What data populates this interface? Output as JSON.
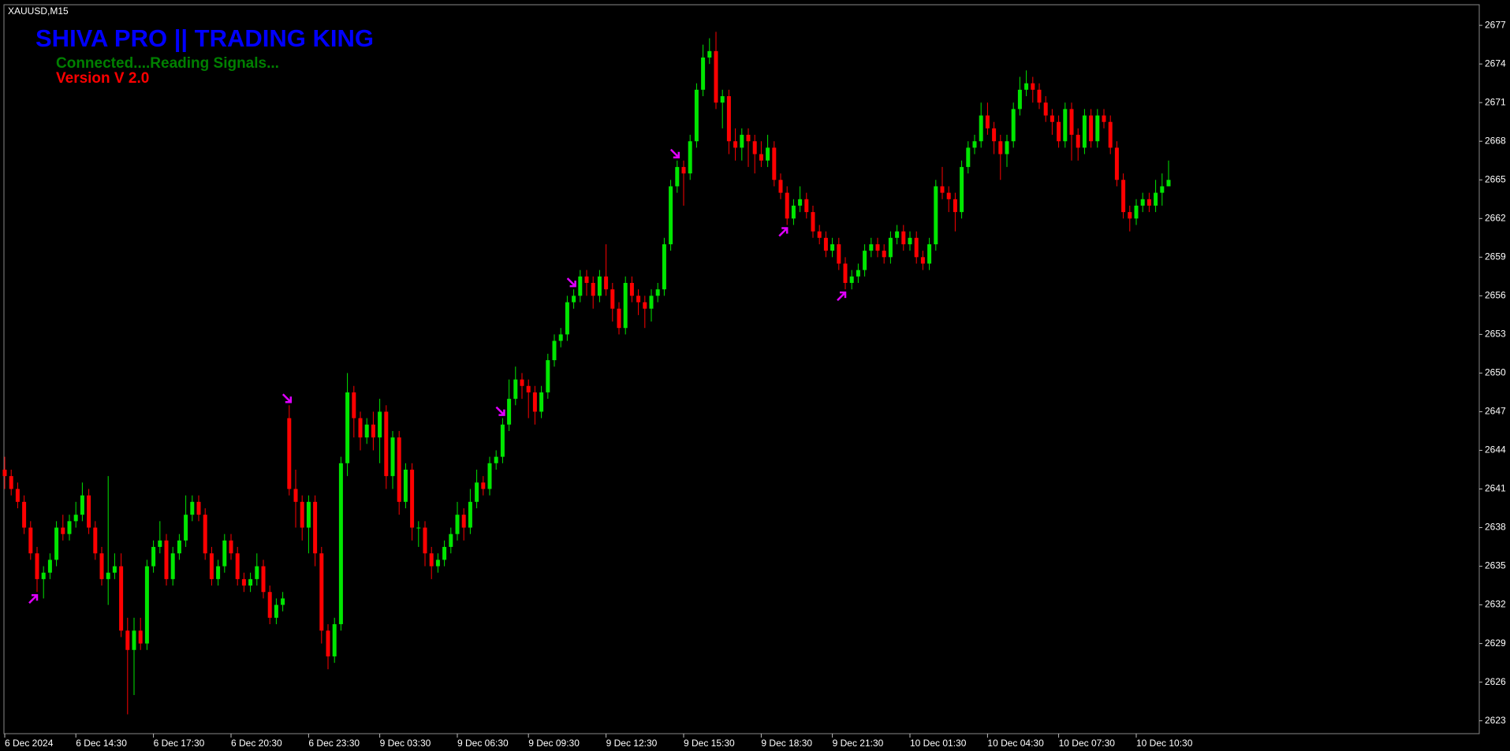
{
  "chart_data": {
    "type": "candlestick",
    "symbol": "XAUUSD,M15",
    "title": "SHIVA PRO || TRADING KING",
    "annotations": [
      "Connected....Reading Signals...",
      "Version V 2.0"
    ],
    "up_color": "#00e600",
    "down_color": "#ff0000",
    "signal_color": "#e000ff",
    "title_color": "#0000ff",
    "annotation_colors": [
      "#008000",
      "#ff0000"
    ],
    "ylim": [
      2622,
      2678.6
    ],
    "yticks": [
      2623,
      2626,
      2629,
      2632,
      2635,
      2638,
      2641,
      2644,
      2647,
      2650,
      2653,
      2656,
      2659,
      2662,
      2665,
      2668,
      2671,
      2674,
      2677
    ],
    "xlim": [
      0,
      180
    ],
    "xticks": [
      {
        "value": 0,
        "label": "6 Dec 2024"
      },
      {
        "value": 11,
        "label": "6 Dec 14:30"
      },
      {
        "value": 23,
        "label": "6 Dec 17:30"
      },
      {
        "value": 35,
        "label": "6 Dec 20:30"
      },
      {
        "value": 47,
        "label": "6 Dec 23:30"
      },
      {
        "value": 58,
        "label": "9 Dec 03:30"
      },
      {
        "value": 70,
        "label": "9 Dec 06:30"
      },
      {
        "value": 81,
        "label": "9 Dec 09:30"
      },
      {
        "value": 93,
        "label": "9 Dec 12:30"
      },
      {
        "value": 105,
        "label": "9 Dec 15:30"
      },
      {
        "value": 117,
        "label": "9 Dec 18:30"
      },
      {
        "value": 128,
        "label": "9 Dec 21:30"
      },
      {
        "value": 140,
        "label": "10 Dec 01:30"
      },
      {
        "value": 152,
        "label": "10 Dec 04:30"
      },
      {
        "value": 163,
        "label": "10 Dec 07:30"
      },
      {
        "value": 175,
        "label": "10 Dec 10:30"
      }
    ],
    "open": [
      2642.5,
      2642,
      2641,
      2640,
      2638,
      2636,
      2634,
      2634.5,
      2635.5,
      2638,
      2637.5,
      2638.5,
      2639,
      2640.5,
      2638,
      2636,
      2634,
      2634.5,
      2635,
      2630,
      2628.5,
      2630,
      2629,
      2635,
      2636.5,
      2637,
      2634,
      2636,
      2637,
      2639,
      2640,
      2639,
      2636,
      2634,
      2635,
      2637,
      2636,
      2634,
      2633.5,
      2634,
      2635,
      2633,
      2631,
      2632,
      2646.5,
      2641,
      2640,
      2638,
      2640,
      2636,
      2630,
      2628,
      2630.5,
      2643,
      2648.5,
      2646.5,
      2645,
      2646,
      2645,
      2647,
      2642,
      2645,
      2640,
      2642.5,
      2638,
      2638,
      2636,
      2635,
      2635.5,
      2636.5,
      2637.5,
      2639,
      2638,
      2640,
      2641.5,
      2641,
      2643,
      2643.5,
      2646,
      2648,
      2649.5,
      2649,
      2648.5,
      2647,
      2648.5,
      2651,
      2652.5,
      2653,
      2655.5,
      2656,
      2657.5,
      2657,
      2656,
      2657.5,
      2656.5,
      2655,
      2653.5,
      2657,
      2656,
      2655.5,
      2655,
      2656,
      2656.5,
      2660,
      2664.5,
      2666,
      2665.5,
      2668,
      2672,
      2674.5,
      2675,
      2671,
      2671.5,
      2668,
      2667.5,
      2668.5,
      2668,
      2667,
      2666.5,
      2667.5,
      2665,
      2664,
      2662,
      2663,
      2663.5,
      2662.5,
      2661,
      2660.5,
      2659.5,
      2660,
      2658.5,
      2657,
      2657.5,
      2658,
      2659.5,
      2660,
      2659.5,
      2659,
      2660.5,
      2661,
      2660,
      2660.5,
      2659,
      2658.5,
      2660,
      2664.5,
      2664,
      2663.5,
      2662.5,
      2666,
      2667.5,
      2668,
      2670,
      2669,
      2668,
      2667,
      2668,
      2670.5,
      2672,
      2672.5,
      2672,
      2671,
      2670,
      2669.5,
      2668,
      2670.5,
      2668.5,
      2667.5,
      2670,
      2668,
      2670,
      2669.5,
      2667.5,
      2665,
      2662.5,
      2662,
      2663,
      2663.5,
      2663,
      2664,
      2664.5
    ],
    "high": [
      2643.5,
      2642.5,
      2641.5,
      2640.5,
      2638.5,
      2636.5,
      2635,
      2636,
      2638.5,
      2639,
      2639,
      2640,
      2641.5,
      2641,
      2638.5,
      2636.5,
      2642,
      2636,
      2636,
      2631,
      2631,
      2631,
      2635.5,
      2637,
      2638.5,
      2637.5,
      2636.5,
      2637.5,
      2640.5,
      2640.5,
      2640.5,
      2639.5,
      2636.5,
      2635.5,
      2637.5,
      2637.5,
      2636.5,
      2634.5,
      2634.5,
      2636,
      2635.5,
      2633.5,
      2632.5,
      2633,
      2647.5,
      2642.5,
      2640.5,
      2640.5,
      2640.5,
      2636.5,
      2630.5,
      2631,
      2643.5,
      2650,
      2649,
      2647,
      2646.5,
      2647,
      2648,
      2647.5,
      2645.5,
      2645.5,
      2643,
      2643,
      2638.5,
      2638.5,
      2636.5,
      2636,
      2637,
      2638,
      2640,
      2639.5,
      2641,
      2642.5,
      2642,
      2643.5,
      2644,
      2646.5,
      2649.5,
      2650.5,
      2650,
      2649.5,
      2649,
      2649,
      2651.5,
      2653,
      2653.5,
      2656,
      2656.5,
      2658,
      2658,
      2657.5,
      2658,
      2660,
      2657,
      2655.5,
      2657.5,
      2657.5,
      2656.5,
      2656,
      2656.5,
      2657,
      2660.5,
      2665,
      2666.5,
      2666.5,
      2668.5,
      2672.5,
      2675.5,
      2676,
      2676.5,
      2672,
      2672,
      2669,
      2669,
      2669,
      2668.5,
      2668,
      2668.5,
      2668,
      2665.5,
      2664.5,
      2663.5,
      2664.5,
      2664,
      2663,
      2661.5,
      2661,
      2660.5,
      2660.5,
      2659,
      2658,
      2658.5,
      2660,
      2660.5,
      2660.5,
      2660,
      2661,
      2661.5,
      2661.5,
      2661,
      2661,
      2659.5,
      2660.5,
      2665,
      2666,
      2664.5,
      2664,
      2666.5,
      2668,
      2668.5,
      2671,
      2671,
      2669.5,
      2668.5,
      2668.5,
      2671,
      2673,
      2673.5,
      2673,
      2672.5,
      2671.5,
      2670.5,
      2670,
      2671,
      2671,
      2669,
      2670.5,
      2670.5,
      2670.5,
      2670.5,
      2670,
      2668,
      2665.5,
      2663,
      2663.5,
      2664,
      2664,
      2665,
      2665.5,
      2666.5
    ],
    "low": [
      2641,
      2640.5,
      2639.5,
      2637.5,
      2635.5,
      2633,
      2632.5,
      2634,
      2635,
      2637,
      2637,
      2638,
      2638.5,
      2637.5,
      2635.5,
      2633.5,
      2632,
      2634,
      2629.5,
      2623.5,
      2625,
      2628.5,
      2628.5,
      2634.5,
      2636,
      2633.5,
      2633.5,
      2635.5,
      2636.5,
      2638.5,
      2638.5,
      2635.5,
      2633.5,
      2633.5,
      2634.5,
      2635.5,
      2633.5,
      2633,
      2633,
      2633.5,
      2632.5,
      2630.5,
      2630.5,
      2631.5,
      2640.5,
      2638,
      2637,
      2636,
      2635,
      2629,
      2627,
      2627.5,
      2630,
      2642,
      2645,
      2644,
      2644.5,
      2644,
      2643,
      2641,
      2641,
      2639,
      2639.5,
      2637,
      2636.5,
      2635,
      2634,
      2634.5,
      2635,
      2636,
      2637,
      2637,
      2637.5,
      2639.5,
      2640.5,
      2640.5,
      2642.5,
      2643,
      2645.5,
      2647.5,
      2648,
      2646.5,
      2646,
      2646.5,
      2648,
      2650.5,
      2652,
      2652.5,
      2655,
      2655.5,
      2656,
      2655,
      2655.5,
      2656,
      2654,
      2653,
      2653,
      2655.5,
      2654.5,
      2653.5,
      2654,
      2655.5,
      2656,
      2659.5,
      2664,
      2663,
      2665,
      2667.5,
      2671.5,
      2674,
      2670.5,
      2669,
      2667,
      2666.5,
      2666.5,
      2666,
      2665.5,
      2666,
      2666,
      2664.5,
      2663.5,
      2661.5,
      2661.5,
      2662.5,
      2662,
      2660.5,
      2660,
      2659,
      2659,
      2658,
      2656.5,
      2656.5,
      2657,
      2657.5,
      2659,
      2659,
      2658.5,
      2658.5,
      2660,
      2659.5,
      2659.5,
      2658.5,
      2658,
      2658,
      2659.5,
      2663.5,
      2662.5,
      2661,
      2662,
      2665.5,
      2667,
      2667.5,
      2668.5,
      2667,
      2665,
      2666,
      2667.5,
      2670,
      2671.5,
      2671,
      2670.5,
      2669.5,
      2668.5,
      2667.5,
      2667.5,
      2666.5,
      2666.5,
      2667,
      2667.5,
      2667.5,
      2669,
      2667,
      2664.5,
      2662,
      2661,
      2661.5,
      2662.5,
      2662.5,
      2662.5,
      2663,
      2664.5
    ],
    "close": [
      2642,
      2641,
      2640,
      2638,
      2636,
      2634,
      2634.5,
      2635.5,
      2638,
      2637.5,
      2638.5,
      2639,
      2640.5,
      2638,
      2636,
      2634,
      2634.5,
      2635,
      2630,
      2628.5,
      2630,
      2629,
      2635,
      2636.5,
      2637,
      2634,
      2636,
      2637,
      2639,
      2640,
      2639,
      2636,
      2634,
      2635,
      2637,
      2636,
      2634,
      2633.5,
      2634,
      2635,
      2633,
      2631,
      2632,
      2632.5,
      2641,
      2640,
      2638,
      2640,
      2636,
      2630,
      2628,
      2630.5,
      2643,
      2648.5,
      2646.5,
      2645,
      2646,
      2645,
      2647,
      2642,
      2645,
      2640,
      2642.5,
      2638,
      2638,
      2636,
      2635,
      2635.5,
      2636.5,
      2637.5,
      2639,
      2638,
      2640,
      2641.5,
      2641,
      2643,
      2643.5,
      2646,
      2648,
      2649.5,
      2649,
      2648.5,
      2647,
      2648.5,
      2651,
      2652.5,
      2653,
      2655.5,
      2656,
      2657.5,
      2657,
      2656,
      2657.5,
      2656.5,
      2655,
      2653.5,
      2657,
      2656,
      2655.5,
      2655,
      2656,
      2656.5,
      2660,
      2664.5,
      2666,
      2665.5,
      2668,
      2672,
      2674.5,
      2675,
      2671,
      2671.5,
      2668,
      2667.5,
      2668.5,
      2668,
      2667,
      2666.5,
      2667.5,
      2665,
      2664,
      2662,
      2663,
      2663.5,
      2662.5,
      2661,
      2660.5,
      2659.5,
      2660,
      2658.5,
      2657,
      2657.5,
      2658,
      2659.5,
      2660,
      2659.5,
      2659,
      2660.5,
      2661,
      2660,
      2660.5,
      2659,
      2658.5,
      2660,
      2664.5,
      2664,
      2663.5,
      2662.5,
      2666,
      2667.5,
      2668,
      2670,
      2669,
      2668,
      2667,
      2668,
      2670.5,
      2672,
      2672.5,
      2672,
      2671,
      2670,
      2669.5,
      2668,
      2670.5,
      2668.5,
      2667.5,
      2670,
      2668,
      2670,
      2669.5,
      2667.5,
      2665,
      2662.5,
      2662,
      2663,
      2663.5,
      2663,
      2664,
      2664.5,
      2665
    ],
    "buy_signals": [
      5,
      121,
      130
    ],
    "sell_signals": [
      44,
      77,
      88,
      104
    ]
  }
}
